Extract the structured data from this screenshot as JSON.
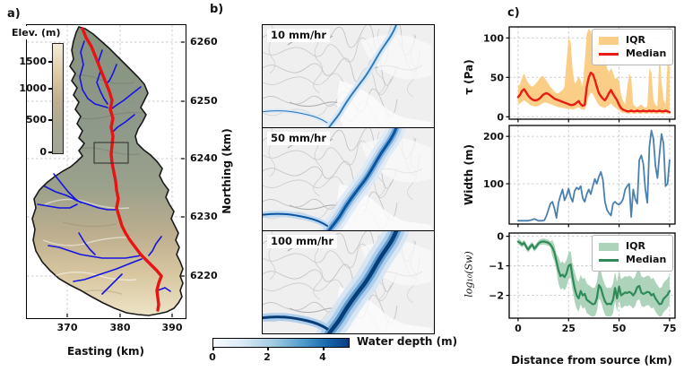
{
  "figure": {
    "panel_a": {
      "label": "a)",
      "xlabel": "Easting (km)",
      "x_ticks": [
        "370",
        "380",
        "390"
      ],
      "ylabel": "Northing (km)",
      "y_ticks": [
        "6260",
        "6250",
        "6240",
        "6230",
        "6220"
      ],
      "colorbar": {
        "title": "Elev. (m)",
        "ticks": [
          "1500",
          "1000",
          "500",
          "0"
        ]
      }
    },
    "panel_b": {
      "label": "b)",
      "map_labels": [
        "10 mm/hr",
        "50 mm/hr",
        "100 mm/hr"
      ],
      "colorbar": {
        "title": "Water depth (m)",
        "ticks": [
          "0",
          "2",
          "4"
        ]
      }
    },
    "panel_c": {
      "label": "c)"
    }
  },
  "colors": {
    "main_stem": "#e81313",
    "tributary": "#1414e0",
    "inset_box": "#333333",
    "tau_band": "#fbce87",
    "tau_line": "#e81c14",
    "width_line": "#4a80b0",
    "sw_band": "#aed3bb",
    "sw_line": "#2e8b57"
  },
  "chart_data": [
    {
      "type": "line",
      "ylabel": "τ (Pa)",
      "xlim": [
        -4.4,
        77.7
      ],
      "ylim": [
        -3,
        114
      ],
      "xticks": [
        0,
        25,
        50,
        75
      ],
      "yticks": [
        0,
        50,
        100
      ],
      "show_x_tick_labels": false,
      "grid": true,
      "legend": {
        "position": "upper right",
        "entries": [
          "IQR",
          "Median"
        ]
      },
      "x": [
        0,
        1,
        2,
        3,
        4,
        5,
        6,
        7,
        8,
        9,
        10,
        11,
        12,
        13,
        14,
        15,
        16,
        17,
        18,
        19,
        20,
        21,
        22,
        23,
        24,
        25,
        26,
        27,
        28,
        29,
        30,
        31,
        32,
        33,
        34,
        35,
        36,
        37,
        38,
        39,
        40,
        41,
        42,
        43,
        44,
        45,
        46,
        47,
        48,
        49,
        50,
        51,
        52,
        53,
        54,
        55,
        56,
        57,
        58,
        59,
        60,
        61,
        62,
        63,
        64,
        65,
        66,
        67,
        68,
        69,
        70,
        71,
        72,
        73,
        74,
        75
      ],
      "band": {
        "name": "IQR",
        "color": "#fbce87",
        "opacity": 1,
        "upper": [
          38,
          42,
          50,
          55,
          48,
          43,
          40,
          38,
          40,
          43,
          46,
          50,
          52,
          50,
          46,
          42,
          38,
          35,
          32,
          30,
          30,
          32,
          34,
          38,
          70,
          100,
          95,
          60,
          42,
          45,
          52,
          46,
          38,
          70,
          105,
          112,
          108,
          98,
          88,
          102,
          92,
          68,
          72,
          76,
          62,
          56,
          62,
          56,
          48,
          50,
          46,
          28,
          20,
          16,
          36,
          55,
          50,
          16,
          13,
          12,
          14,
          16,
          13,
          11,
          14,
          62,
          56,
          22,
          15,
          13,
          82,
          45,
          22,
          16,
          70,
          95
        ],
        "lower": [
          16,
          17,
          19,
          21,
          19,
          17,
          15,
          14,
          13,
          13,
          14,
          15,
          17,
          18,
          18,
          17,
          16,
          15,
          14,
          13,
          12,
          12,
          11,
          11,
          10,
          10,
          10,
          9,
          10,
          11,
          12,
          10,
          9,
          9,
          16,
          26,
          31,
          29,
          24,
          19,
          15,
          13,
          12,
          11,
          13,
          15,
          17,
          14,
          12,
          10,
          8,
          6,
          5,
          5,
          4,
          4,
          5,
          4,
          4,
          5,
          4,
          4,
          5,
          4,
          4,
          5,
          4,
          5,
          4,
          4,
          5,
          4,
          4,
          5,
          4,
          4
        ]
      },
      "series": [
        {
          "name": "Median",
          "color": "#e81c14",
          "width": 2.4,
          "values": [
            25,
            28,
            33,
            35,
            31,
            27,
            24,
            22,
            21,
            21,
            22,
            24,
            27,
            29,
            30,
            29,
            27,
            25,
            23,
            22,
            21,
            20,
            19,
            18,
            17,
            16,
            15,
            15,
            16,
            18,
            20,
            16,
            14,
            15,
            38,
            50,
            56,
            54,
            47,
            38,
            30,
            26,
            23,
            21,
            25,
            30,
            34,
            29,
            25,
            21,
            15,
            11,
            9,
            8,
            7,
            7,
            8,
            7,
            7,
            8,
            7,
            7,
            8,
            7,
            7,
            8,
            7,
            8,
            7,
            7,
            8,
            7,
            7,
            8,
            7,
            6
          ]
        }
      ]
    },
    {
      "type": "line",
      "ylabel": "Width (m)",
      "xlim": [
        -4.4,
        77.7
      ],
      "ylim": [
        15,
        223
      ],
      "xticks": [
        0,
        25,
        50,
        75
      ],
      "yticks": [
        100,
        200
      ],
      "show_x_tick_labels": false,
      "grid": true,
      "x": [
        0,
        1,
        2,
        3,
        4,
        5,
        6,
        7,
        8,
        9,
        10,
        11,
        12,
        13,
        14,
        15,
        16,
        17,
        18,
        19,
        20,
        21,
        22,
        23,
        24,
        25,
        26,
        27,
        28,
        29,
        30,
        31,
        32,
        33,
        34,
        35,
        36,
        37,
        38,
        39,
        40,
        41,
        42,
        43,
        44,
        45,
        46,
        47,
        48,
        49,
        50,
        51,
        52,
        53,
        54,
        55,
        56,
        57,
        58,
        59,
        60,
        61,
        62,
        63,
        64,
        65,
        66,
        67,
        68,
        69,
        70,
        71,
        72,
        73,
        74,
        75
      ],
      "series": [
        {
          "name": "Width",
          "color": "#4a80b0",
          "width": 1.8,
          "values": [
            22,
            22,
            22,
            22,
            22,
            22,
            23,
            24,
            26,
            24,
            22,
            22,
            22,
            23,
            32,
            45,
            58,
            62,
            48,
            28,
            60,
            75,
            88,
            65,
            75,
            90,
            72,
            62,
            85,
            92,
            88,
            95,
            70,
            62,
            78,
            88,
            78,
            95,
            110,
            100,
            115,
            125,
            108,
            62,
            45,
            38,
            33,
            58,
            62,
            58,
            56,
            60,
            68,
            88,
            95,
            100,
            30,
            88,
            68,
            58,
            150,
            160,
            142,
            88,
            60,
            178,
            212,
            195,
            138,
            112,
            162,
            205,
            185,
            95,
            100,
            150
          ]
        }
      ]
    },
    {
      "type": "line",
      "ylabel": "log₁₀(Sw)",
      "xlabel": "Distance from source (km)",
      "xlim": [
        -4.4,
        77.7
      ],
      "ylim": [
        -2.77,
        0.11
      ],
      "xticks": [
        0,
        25,
        50,
        75
      ],
      "yticks": [
        0,
        -1,
        -2
      ],
      "show_x_tick_labels": true,
      "grid": true,
      "legend": {
        "position": "upper right",
        "entries": [
          "IQR",
          "Median"
        ]
      },
      "x": [
        0,
        1,
        2,
        3,
        4,
        5,
        6,
        7,
        8,
        9,
        10,
        11,
        12,
        13,
        14,
        15,
        16,
        17,
        18,
        19,
        20,
        21,
        22,
        23,
        24,
        25,
        26,
        27,
        28,
        29,
        30,
        31,
        32,
        33,
        34,
        35,
        36,
        37,
        38,
        39,
        40,
        41,
        42,
        43,
        44,
        45,
        46,
        47,
        48,
        49,
        50,
        51,
        52,
        53,
        54,
        55,
        56,
        57,
        58,
        59,
        60,
        61,
        62,
        63,
        64,
        65,
        66,
        67,
        68,
        69,
        70,
        71,
        72,
        73,
        74,
        75
      ],
      "band": {
        "name": "IQR",
        "color": "#aed3bb",
        "opacity": 1,
        "upper": [
          -0.08,
          -0.12,
          -0.18,
          -0.12,
          -0.25,
          -0.35,
          -0.25,
          -0.18,
          -0.32,
          -0.25,
          -0.15,
          -0.1,
          -0.08,
          -0.08,
          -0.1,
          -0.12,
          -0.18,
          -0.13,
          -0.3,
          -0.6,
          -0.7,
          -0.9,
          -0.85,
          -0.93,
          -0.8,
          -0.55,
          -0.5,
          -0.95,
          -1.2,
          -1.45,
          -1.55,
          -1.3,
          -1.45,
          -1.4,
          -1.6,
          -1.65,
          -1.7,
          -1.75,
          -1.73,
          -1.55,
          -1.1,
          -1.2,
          -1.45,
          -1.65,
          -1.75,
          -1.73,
          -1.75,
          -1.6,
          -1.2,
          -1.55,
          -1.15,
          -1.45,
          -1.4,
          -1.35,
          -1.37,
          -1.33,
          -1.37,
          -1.45,
          -1.35,
          -1.17,
          -1.13,
          -1.35,
          -1.4,
          -1.37,
          -1.33,
          -1.35,
          -1.45,
          -1.4,
          -1.55,
          -1.65,
          -1.75,
          -1.73,
          -1.57,
          -1.5,
          -1.43,
          -1.3
        ],
        "lower": [
          -0.28,
          -0.32,
          -0.38,
          -0.32,
          -0.45,
          -0.55,
          -0.45,
          -0.38,
          -0.52,
          -0.45,
          -0.35,
          -0.3,
          -0.28,
          -0.28,
          -0.3,
          -0.32,
          -0.38,
          -0.68,
          -0.85,
          -1.15,
          -1.6,
          -1.8,
          -1.75,
          -1.83,
          -1.7,
          -1.45,
          -1.4,
          -1.85,
          -2.2,
          -2.45,
          -2.55,
          -2.3,
          -2.45,
          -2.4,
          -2.6,
          -2.65,
          -2.7,
          -2.72,
          -2.7,
          -2.55,
          -2.1,
          -2.2,
          -2.45,
          -2.65,
          -2.72,
          -2.7,
          -2.72,
          -2.6,
          -2.2,
          -2.55,
          -2.15,
          -2.45,
          -2.4,
          -2.35,
          -2.37,
          -2.33,
          -2.37,
          -2.45,
          -2.35,
          -2.17,
          -2.13,
          -2.35,
          -2.4,
          -2.37,
          -2.33,
          -2.35,
          -2.45,
          -2.4,
          -2.55,
          -2.65,
          -2.72,
          -2.7,
          -2.57,
          -2.5,
          -2.43,
          -2.3
        ]
      },
      "series": [
        {
          "name": "Median",
          "color": "#2e8b57",
          "width": 2.2,
          "values": [
            -0.18,
            -0.22,
            -0.28,
            -0.22,
            -0.35,
            -0.45,
            -0.35,
            -0.28,
            -0.42,
            -0.35,
            -0.25,
            -0.2,
            -0.18,
            -0.18,
            -0.2,
            -0.22,
            -0.28,
            -0.38,
            -0.55,
            -0.85,
            -1.15,
            -1.35,
            -1.3,
            -1.38,
            -1.25,
            -1.0,
            -0.95,
            -1.4,
            -1.75,
            -2.0,
            -2.1,
            -1.85,
            -2.0,
            -1.95,
            -2.15,
            -2.2,
            -2.25,
            -2.3,
            -2.28,
            -2.1,
            -1.65,
            -1.75,
            -2.0,
            -2.2,
            -2.3,
            -2.28,
            -2.3,
            -2.15,
            -1.75,
            -2.1,
            -1.7,
            -2.0,
            -1.95,
            -1.9,
            -1.92,
            -1.88,
            -1.92,
            -2.0,
            -1.9,
            -1.72,
            -1.68,
            -1.9,
            -1.95,
            -1.92,
            -1.88,
            -1.9,
            -2.0,
            -1.95,
            -2.1,
            -2.2,
            -2.3,
            -2.28,
            -2.12,
            -2.05,
            -1.98,
            -1.85
          ]
        }
      ]
    }
  ]
}
